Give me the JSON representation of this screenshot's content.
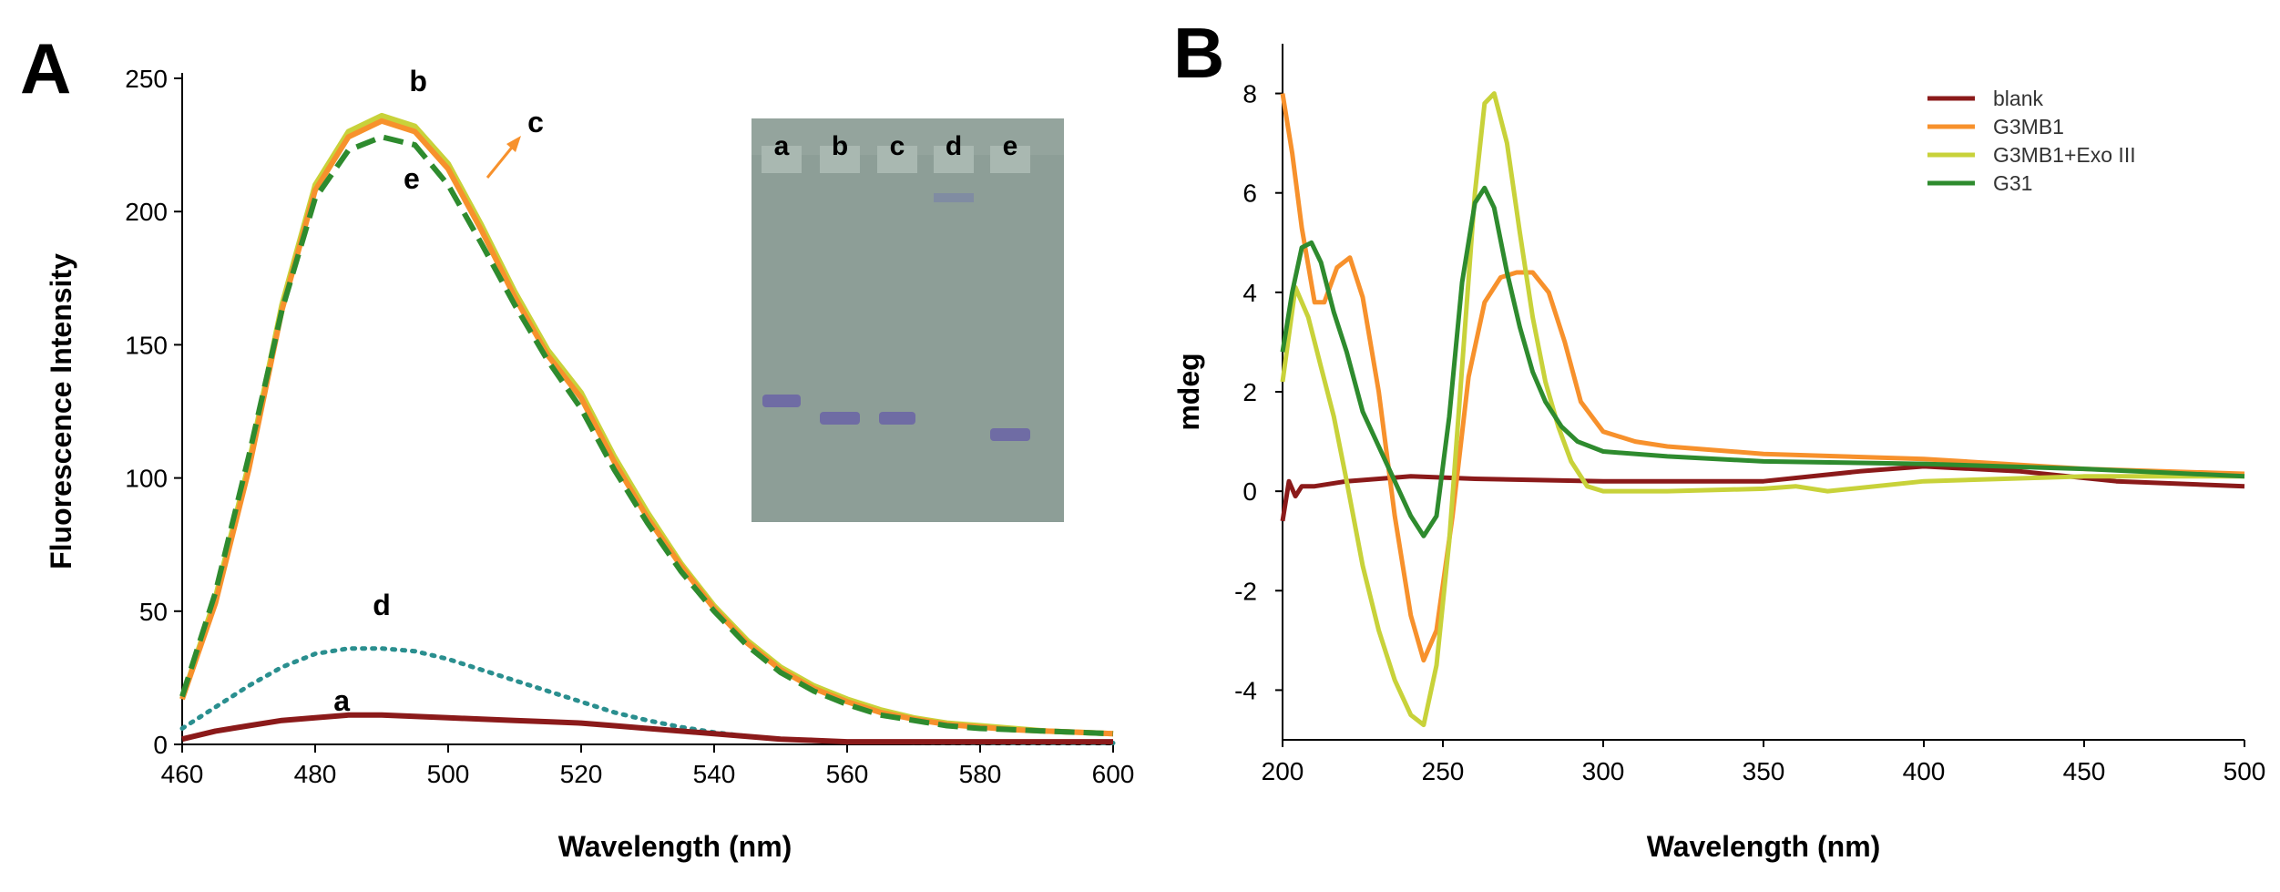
{
  "chart_data": [
    {
      "panel": "A",
      "type": "line",
      "title": "",
      "xlabel": "Wavelength (nm)",
      "ylabel": "Fluorescence Intensity",
      "xlim": [
        460,
        600
      ],
      "ylim": [
        0,
        250
      ],
      "xticks": [
        460,
        480,
        500,
        520,
        540,
        560,
        580,
        600
      ],
      "yticks": [
        0,
        50,
        100,
        150,
        200,
        250
      ],
      "x": [
        460,
        465,
        470,
        475,
        480,
        485,
        490,
        495,
        500,
        505,
        510,
        515,
        520,
        525,
        530,
        535,
        540,
        545,
        550,
        555,
        560,
        565,
        570,
        575,
        580,
        585,
        590,
        595,
        600
      ],
      "series": [
        {
          "name": "a",
          "color": "#8b1a1a",
          "style": "solid",
          "values": [
            2,
            5,
            7,
            9,
            10,
            11,
            11,
            10.5,
            10,
            9.5,
            9,
            8.5,
            8,
            7,
            6,
            5,
            4,
            3,
            2,
            1.5,
            1,
            1,
            1,
            1,
            1,
            1,
            1,
            1,
            1
          ]
        },
        {
          "name": "b",
          "color": "#c8d23a",
          "style": "solid",
          "values": [
            17,
            55,
            105,
            165,
            210,
            230,
            236,
            232,
            218,
            195,
            170,
            148,
            132,
            108,
            87,
            68,
            52,
            39,
            29,
            22,
            17,
            13,
            10,
            8,
            7,
            6,
            5,
            4.5,
            4
          ]
        },
        {
          "name": "c",
          "color": "#f7912c",
          "style": "solid",
          "values": [
            17,
            53,
            103,
            163,
            208,
            228,
            234,
            230,
            216,
            193,
            168,
            146,
            130,
            106,
            85,
            67,
            51,
            38,
            28,
            21,
            16,
            12,
            9.5,
            7.5,
            6.5,
            5.5,
            5,
            4.5,
            4
          ]
        },
        {
          "name": "d",
          "color": "#2a8f8f",
          "style": "dotted",
          "values": [
            6,
            14,
            22,
            29,
            34,
            36,
            36,
            35,
            32,
            28,
            24,
            20,
            16,
            12,
            9,
            6.5,
            4.5,
            3,
            2,
            1.5,
            1,
            1,
            0.8,
            0.7,
            0.6,
            0.5,
            0.5,
            0.5,
            0.5
          ]
        },
        {
          "name": "e",
          "color": "#2e8b2e",
          "style": "dashed",
          "values": [
            18,
            57,
            108,
            163,
            205,
            223,
            228,
            225,
            210,
            188,
            165,
            144,
            126,
            103,
            83,
            65,
            50,
            37,
            27,
            20,
            15,
            11,
            9,
            7,
            6,
            5.5,
            5,
            4.5,
            4
          ]
        }
      ],
      "curve_labels": [
        "b",
        "c",
        "e",
        "d",
        "a"
      ],
      "inset": {
        "type": "gel",
        "lanes": [
          "a",
          "b",
          "c",
          "d",
          "e"
        ]
      }
    },
    {
      "panel": "B",
      "type": "line",
      "title": "",
      "xlabel": "Wavelength (nm)",
      "ylabel": "mdeg",
      "xlim": [
        200,
        500
      ],
      "ylim": [
        -5,
        9
      ],
      "xticks": [
        200,
        250,
        300,
        350,
        400,
        450,
        500
      ],
      "yticks": [
        -4,
        -2,
        0,
        2,
        4,
        6,
        8
      ],
      "ytick_labels": [
        "-4",
        "-2",
        "0",
        "2",
        "4",
        "6",
        "8"
      ],
      "legend": "top-right",
      "series": [
        {
          "name": "blank",
          "color": "#8b1a1a",
          "x": [
            200,
            202,
            204,
            206,
            210,
            220,
            240,
            260,
            300,
            350,
            380,
            400,
            430,
            460,
            500
          ],
          "values": [
            -0.6,
            0.2,
            -0.1,
            0.1,
            0.1,
            0.2,
            0.3,
            0.25,
            0.2,
            0.2,
            0.4,
            0.5,
            0.4,
            0.2,
            0.1
          ]
        },
        {
          "name": "G3MB1",
          "color": "#f7912c",
          "x": [
            200,
            203,
            206,
            210,
            213,
            217,
            221,
            225,
            230,
            235,
            240,
            244,
            248,
            253,
            258,
            263,
            268,
            273,
            278,
            283,
            288,
            293,
            300,
            310,
            320,
            350,
            400,
            450,
            500
          ],
          "values": [
            8.0,
            6.8,
            5.3,
            3.8,
            3.8,
            4.5,
            4.7,
            3.9,
            2.0,
            -0.5,
            -2.5,
            -3.4,
            -2.8,
            -0.5,
            2.3,
            3.8,
            4.3,
            4.4,
            4.4,
            4.0,
            3.0,
            1.8,
            1.2,
            1.0,
            0.9,
            0.75,
            0.65,
            0.45,
            0.35
          ]
        },
        {
          "name": "G3MB1+Exo III",
          "color": "#c8d23a",
          "x": [
            200,
            204,
            208,
            212,
            216,
            220,
            225,
            230,
            235,
            240,
            244,
            248,
            252,
            256,
            260,
            263,
            266,
            270,
            274,
            278,
            282,
            286,
            290,
            295,
            300,
            320,
            350,
            360,
            370,
            400,
            450,
            500
          ],
          "values": [
            2.2,
            4.1,
            3.5,
            2.5,
            1.5,
            0.2,
            -1.5,
            -2.8,
            -3.8,
            -4.5,
            -4.7,
            -3.5,
            -1.0,
            2.5,
            6.0,
            7.8,
            8.0,
            7.0,
            5.2,
            3.5,
            2.2,
            1.3,
            0.6,
            0.1,
            0.0,
            0.0,
            0.05,
            0.1,
            0.0,
            0.2,
            0.3,
            0.3
          ]
        },
        {
          "name": "G31",
          "color": "#2e8b2e",
          "x": [
            200,
            203,
            206,
            209,
            212,
            216,
            220,
            225,
            230,
            235,
            240,
            244,
            248,
            252,
            256,
            260,
            263,
            266,
            270,
            274,
            278,
            282,
            287,
            292,
            300,
            320,
            350,
            400,
            450,
            500
          ],
          "values": [
            2.8,
            4.0,
            4.9,
            5.0,
            4.6,
            3.6,
            2.8,
            1.6,
            0.9,
            0.2,
            -0.5,
            -0.9,
            -0.5,
            1.5,
            4.2,
            5.8,
            6.1,
            5.7,
            4.4,
            3.3,
            2.4,
            1.8,
            1.3,
            1.0,
            0.8,
            0.7,
            0.6,
            0.55,
            0.45,
            0.3
          ]
        }
      ]
    }
  ],
  "panels": {
    "a": {
      "label": "A"
    },
    "b": {
      "label": "B"
    }
  }
}
